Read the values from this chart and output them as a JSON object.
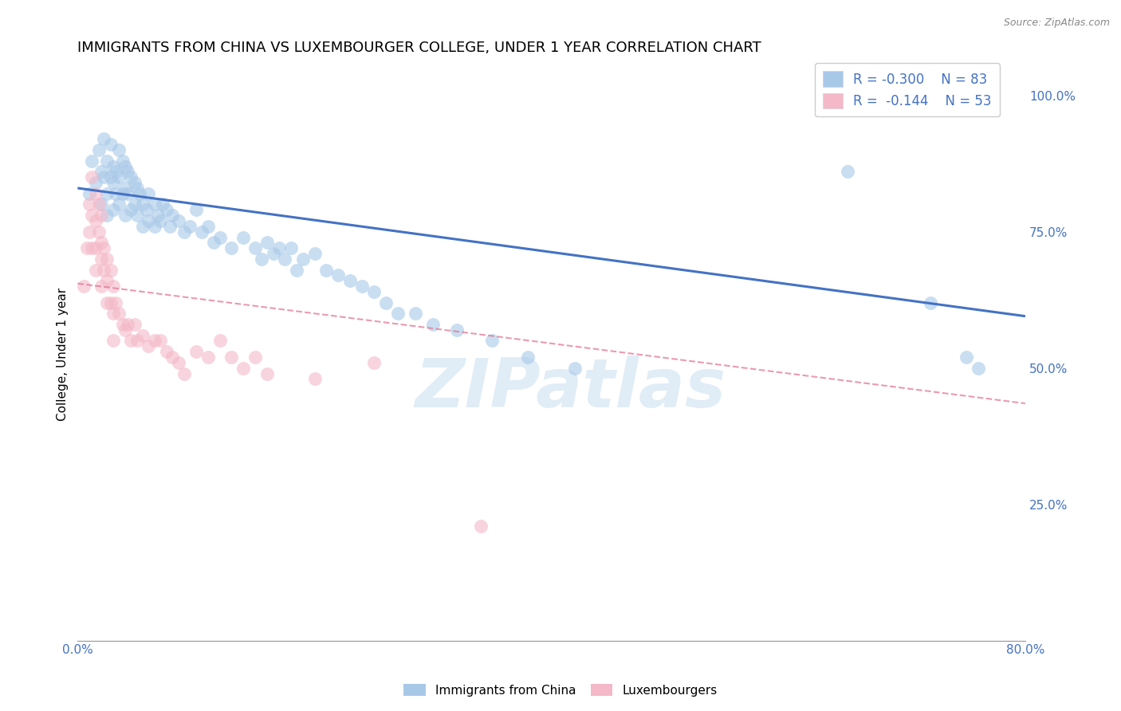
{
  "title": "IMMIGRANTS FROM CHINA VS LUXEMBOURGER COLLEGE, UNDER 1 YEAR CORRELATION CHART",
  "source": "Source: ZipAtlas.com",
  "ylabel": "College, Under 1 year",
  "xlim": [
    0.0,
    0.8
  ],
  "ylim": [
    0.0,
    1.05
  ],
  "xticks": [
    0.0,
    0.1,
    0.2,
    0.3,
    0.4,
    0.5,
    0.6,
    0.7,
    0.8
  ],
  "xticklabels": [
    "0.0%",
    "",
    "",
    "",
    "",
    "",
    "",
    "",
    "80.0%"
  ],
  "yticks_right": [
    0.25,
    0.5,
    0.75,
    1.0
  ],
  "yticklabels_right": [
    "25.0%",
    "50.0%",
    "75.0%",
    "100.0%"
  ],
  "color_blue": "#a8c8e8",
  "color_pink": "#f4b8c8",
  "color_blue_line": "#4472c4",
  "color_pink_line": "#e07090",
  "color_text_blue": "#4472c4",
  "watermark": "ZIPatlas",
  "blue_scatter_x": [
    0.01,
    0.012,
    0.015,
    0.018,
    0.02,
    0.02,
    0.022,
    0.022,
    0.025,
    0.025,
    0.025,
    0.028,
    0.028,
    0.03,
    0.03,
    0.03,
    0.032,
    0.032,
    0.035,
    0.035,
    0.035,
    0.038,
    0.038,
    0.04,
    0.04,
    0.04,
    0.042,
    0.042,
    0.045,
    0.045,
    0.048,
    0.048,
    0.05,
    0.05,
    0.052,
    0.055,
    0.055,
    0.058,
    0.06,
    0.06,
    0.065,
    0.065,
    0.068,
    0.07,
    0.072,
    0.075,
    0.078,
    0.08,
    0.085,
    0.09,
    0.095,
    0.1,
    0.105,
    0.11,
    0.115,
    0.12,
    0.13,
    0.14,
    0.15,
    0.155,
    0.16,
    0.165,
    0.17,
    0.175,
    0.18,
    0.185,
    0.19,
    0.2,
    0.21,
    0.22,
    0.23,
    0.24,
    0.25,
    0.26,
    0.27,
    0.285,
    0.3,
    0.32,
    0.35,
    0.38,
    0.42,
    0.65,
    0.72,
    0.75,
    0.76
  ],
  "blue_scatter_y": [
    0.82,
    0.88,
    0.84,
    0.9,
    0.86,
    0.8,
    0.92,
    0.85,
    0.88,
    0.82,
    0.78,
    0.91,
    0.85,
    0.87,
    0.84,
    0.79,
    0.86,
    0.82,
    0.9,
    0.85,
    0.8,
    0.88,
    0.82,
    0.87,
    0.83,
    0.78,
    0.86,
    0.82,
    0.85,
    0.79,
    0.84,
    0.8,
    0.83,
    0.78,
    0.82,
    0.8,
    0.76,
    0.79,
    0.82,
    0.77,
    0.8,
    0.76,
    0.78,
    0.77,
    0.8,
    0.79,
    0.76,
    0.78,
    0.77,
    0.75,
    0.76,
    0.79,
    0.75,
    0.76,
    0.73,
    0.74,
    0.72,
    0.74,
    0.72,
    0.7,
    0.73,
    0.71,
    0.72,
    0.7,
    0.72,
    0.68,
    0.7,
    0.71,
    0.68,
    0.67,
    0.66,
    0.65,
    0.64,
    0.62,
    0.6,
    0.6,
    0.58,
    0.57,
    0.55,
    0.52,
    0.5,
    0.86,
    0.62,
    0.52,
    0.5
  ],
  "pink_scatter_x": [
    0.005,
    0.008,
    0.01,
    0.01,
    0.012,
    0.012,
    0.012,
    0.015,
    0.015,
    0.015,
    0.015,
    0.018,
    0.018,
    0.02,
    0.02,
    0.02,
    0.02,
    0.022,
    0.022,
    0.025,
    0.025,
    0.025,
    0.028,
    0.028,
    0.03,
    0.03,
    0.03,
    0.032,
    0.035,
    0.038,
    0.04,
    0.042,
    0.045,
    0.048,
    0.05,
    0.055,
    0.06,
    0.065,
    0.07,
    0.075,
    0.08,
    0.085,
    0.09,
    0.1,
    0.11,
    0.12,
    0.13,
    0.14,
    0.15,
    0.16,
    0.2,
    0.25,
    0.34
  ],
  "pink_scatter_y": [
    0.65,
    0.72,
    0.8,
    0.75,
    0.85,
    0.78,
    0.72,
    0.82,
    0.77,
    0.72,
    0.68,
    0.8,
    0.75,
    0.78,
    0.73,
    0.7,
    0.65,
    0.72,
    0.68,
    0.7,
    0.66,
    0.62,
    0.68,
    0.62,
    0.65,
    0.6,
    0.55,
    0.62,
    0.6,
    0.58,
    0.57,
    0.58,
    0.55,
    0.58,
    0.55,
    0.56,
    0.54,
    0.55,
    0.55,
    0.53,
    0.52,
    0.51,
    0.49,
    0.53,
    0.52,
    0.55,
    0.52,
    0.5,
    0.52,
    0.49,
    0.48,
    0.51,
    0.21
  ],
  "blue_line_x": [
    0.0,
    0.8
  ],
  "blue_line_y": [
    0.83,
    0.595
  ],
  "pink_line_x": [
    0.0,
    0.8
  ],
  "pink_line_y": [
    0.655,
    0.435
  ],
  "grid_color": "#cccccc",
  "background_color": "#ffffff",
  "title_fontsize": 13,
  "axis_label_fontsize": 11,
  "tick_fontsize": 11,
  "legend_fontsize": 12
}
